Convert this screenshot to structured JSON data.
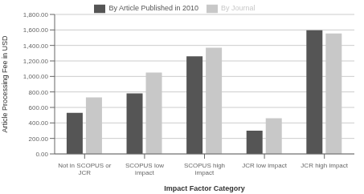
{
  "chart_data": {
    "type": "bar",
    "categories": [
      "Not in SCOPUS or\nJCR",
      "SCOPUS low\nimpact",
      "SCOPUS high\nimpact",
      "JCR low impact",
      "JCR high impact"
    ],
    "series": [
      {
        "name": "By Article Published in 2010",
        "color": "#555555",
        "values": [
          530,
          780,
          1260,
          300,
          1595
        ]
      },
      {
        "name": "By Journal",
        "color": "#c8c8c8",
        "values": [
          730,
          1050,
          1370,
          460,
          1555
        ]
      }
    ],
    "xlabel": "Impact Factor Category",
    "ylabel": "Article Processing Fee in USD",
    "ylim": [
      0,
      1800
    ],
    "yticks": [
      {
        "value": 0,
        "label": "0.00"
      },
      {
        "value": 200,
        "label": "200.00"
      },
      {
        "value": 400,
        "label": "400.00"
      },
      {
        "value": 600,
        "label": "600.00"
      },
      {
        "value": 800,
        "label": "800.00"
      },
      {
        "value": 1000,
        "label": "1,000.00"
      },
      {
        "value": 1200,
        "label": "1,200.00"
      },
      {
        "value": 1400,
        "label": "1,400.00"
      },
      {
        "value": 1600,
        "label": "1,600.00"
      },
      {
        "value": 1800,
        "label": "1,800.00"
      }
    ],
    "grid": true,
    "legend": "top"
  }
}
